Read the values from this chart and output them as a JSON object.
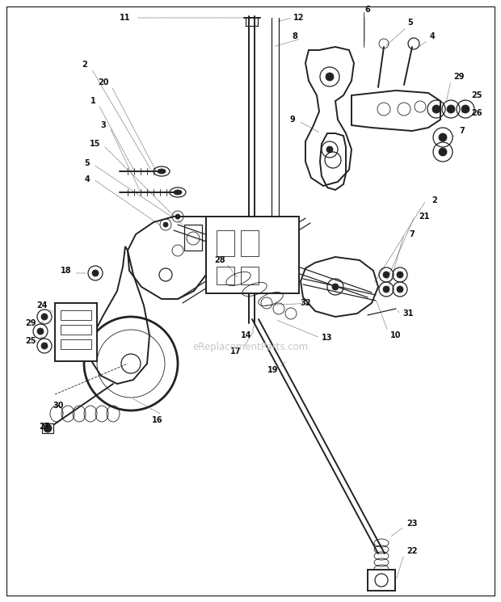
{
  "bg_color": "#ffffff",
  "fig_width": 6.2,
  "fig_height": 7.45,
  "dpi": 100,
  "line_color": "#222222",
  "label_color": "#111111",
  "watermark": "eReplacementParts.com",
  "watermark_color": "#c8c8c8",
  "border_color": "#aaaaaa",
  "lw_thin": 0.6,
  "lw_med": 0.9,
  "lw_thick": 1.4,
  "lw_xthick": 2.0,
  "font_size": 7.0
}
